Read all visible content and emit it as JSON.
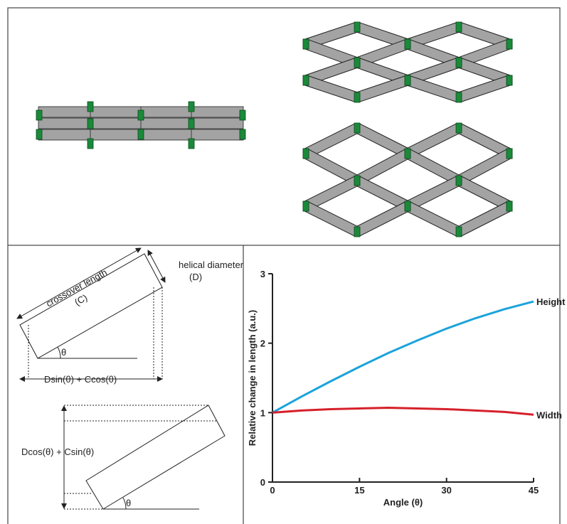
{
  "diagram": {
    "top_rect": {
      "length": "crossover length",
      "length_symbol": "(C)",
      "diameter": "helical diameter",
      "diameter_symbol": "(D)",
      "theta": "θ",
      "width_formula": "Dsin(θ) + Ccos(θ)"
    },
    "bottom_rect": {
      "height_formula": "Dcos(θ) + Csin(θ)",
      "theta": "θ"
    }
  },
  "chart_data": {
    "type": "line",
    "x_label": "Angle (θ)",
    "y_label": "Relative change in length (a.u.)",
    "x": [
      0,
      5,
      10,
      15,
      20,
      25,
      30,
      35,
      40,
      45
    ],
    "series": [
      {
        "name": "Height",
        "color": "#1ba3dc",
        "values": [
          1,
          1.23,
          1.45,
          1.66,
          1.86,
          2.04,
          2.21,
          2.36,
          2.49,
          2.6
        ]
      },
      {
        "name": "Width",
        "color": "#d6202a",
        "values": [
          1,
          1.03,
          1.05,
          1.06,
          1.07,
          1.06,
          1.05,
          1.03,
          1.01,
          0.97
        ]
      }
    ],
    "xlim": [
      0,
      45
    ],
    "xticks": [
      0,
      15,
      30,
      45
    ],
    "ylim": [
      0,
      3
    ],
    "yticks": [
      0,
      1,
      2,
      3
    ]
  }
}
